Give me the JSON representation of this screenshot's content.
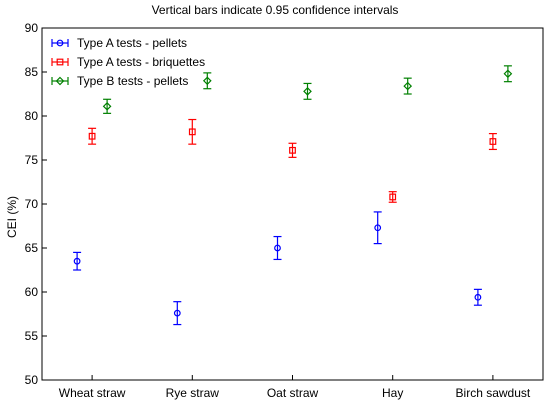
{
  "chart_data": {
    "type": "scatter",
    "title": "Vertical bars indicate 0.95 confidence intervals",
    "ylabel": "CEI (%)",
    "xlabel": "",
    "ylim": [
      50,
      90
    ],
    "yticks": [
      50,
      55,
      60,
      65,
      70,
      75,
      80,
      85,
      90
    ],
    "categories": [
      "Wheat straw",
      "Rye straw",
      "Oat straw",
      "Hay",
      "Birch sawdust"
    ],
    "legend_position": "top-left",
    "grid": false,
    "series": [
      {
        "name": "Type A tests - pellets",
        "color": "#0000ff",
        "marker": "circle",
        "values": [
          63.5,
          57.6,
          65.0,
          67.3,
          59.4
        ],
        "lower": [
          62.5,
          56.3,
          63.7,
          65.5,
          58.5
        ],
        "upper": [
          64.5,
          58.9,
          66.3,
          69.1,
          60.3
        ]
      },
      {
        "name": "Type A tests - briquettes",
        "color": "#ff0000",
        "marker": "square",
        "values": [
          77.7,
          78.2,
          76.1,
          70.8,
          77.1
        ],
        "lower": [
          76.8,
          76.8,
          75.3,
          70.2,
          76.2
        ],
        "upper": [
          78.6,
          79.6,
          76.9,
          71.4,
          78.0
        ]
      },
      {
        "name": "Type B tests - pellets",
        "color": "#008000",
        "marker": "diamond",
        "values": [
          81.1,
          84.0,
          82.8,
          83.4,
          84.8
        ],
        "lower": [
          80.3,
          83.1,
          81.9,
          82.5,
          83.9
        ],
        "upper": [
          81.9,
          84.9,
          83.7,
          84.3,
          85.7
        ]
      }
    ]
  }
}
